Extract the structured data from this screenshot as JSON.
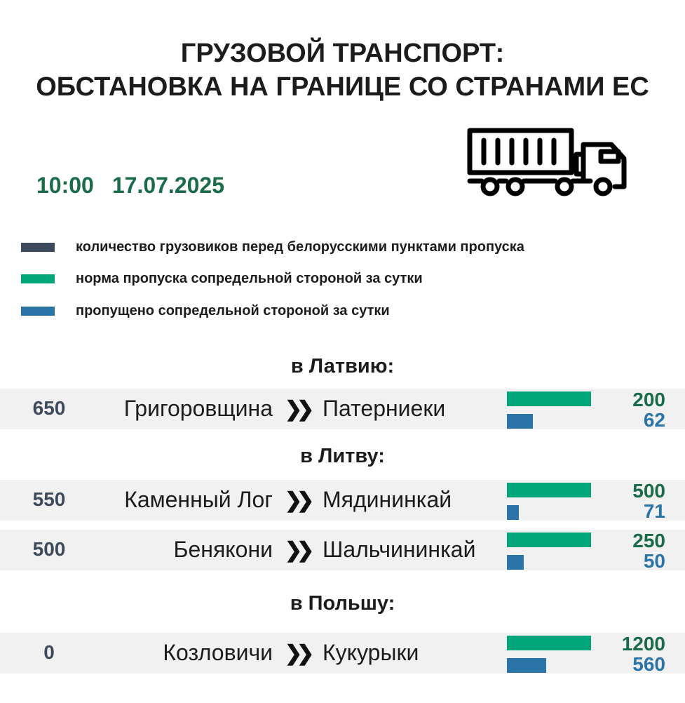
{
  "header": {
    "title_line1": "ГРУЗОВОЙ ТРАНСПОРТ:",
    "title_line2": "ОБСТАНОВКА НА ГРАНИЦЕ СО СТРАНАМИ ЕС",
    "time": "10:00",
    "date": "17.07.2025",
    "icon": "truck-icon"
  },
  "legend": [
    {
      "label": "количество грузовиков перед белорусскими пунктами пропуска",
      "color": "#3d4a5c"
    },
    {
      "label": "норма пропуска сопредельной стороной за сутки",
      "color": "#00a67a"
    },
    {
      "label": "пропущено сопредельной стороной за сутки",
      "color": "#2a74a8"
    }
  ],
  "sections": [
    {
      "title": "в Латвию:",
      "rows": [
        {
          "count": "650",
          "from": "Григоровщина",
          "to": "Патерниеки",
          "norm": 200,
          "passed": 62
        }
      ]
    },
    {
      "title": "в Литву:",
      "rows": [
        {
          "count": "550",
          "from": "Каменный Лог",
          "to": "Мядининкай",
          "norm": 500,
          "passed": 71
        },
        {
          "count": "500",
          "from": "Бенякони",
          "to": "Шальчининкай",
          "norm": 250,
          "passed": 50
        }
      ]
    },
    {
      "title": "в Польшу:",
      "rows": [
        {
          "count": "0",
          "from": "Козловичи",
          "to": "Кукурыки",
          "norm": 1200,
          "passed": 560
        }
      ]
    }
  ],
  "arrow_glyph": "❯❯"
}
